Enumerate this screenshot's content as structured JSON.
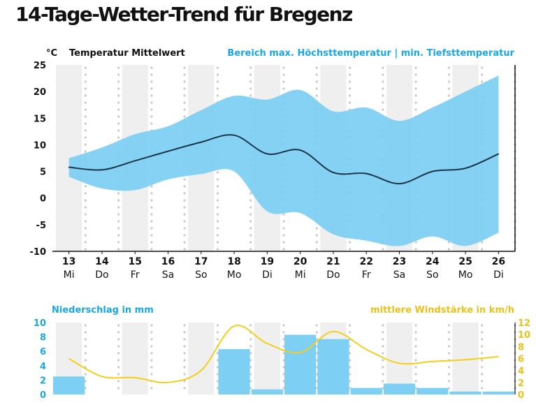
{
  "title": "14-Tage-Wetter-Trend für Bregenz",
  "colors": {
    "band": "#7dcff4",
    "mean_line": "#1b3446",
    "precip": "#7dcff4",
    "wind": "#f3cf1a",
    "wind_axis": "#e9c21a",
    "precip_axis": "#1aa7e2",
    "stripe": "#efefef",
    "dot": "#c9c9c9"
  },
  "chart_data": [
    {
      "type": "area",
      "title": "Temperatur Mittelwert",
      "unit_label": "°C",
      "legend_range": "Bereich max. Höchsttemperatur | min. Tiefsttemperatur",
      "ylim": [
        -10,
        25
      ],
      "yticks": [
        25,
        20,
        15,
        10,
        5,
        0,
        -5,
        -10
      ],
      "categories": [
        "13",
        "14",
        "15",
        "16",
        "17",
        "18",
        "19",
        "20",
        "21",
        "22",
        "23",
        "24",
        "25",
        "26"
      ],
      "weekdays": [
        "Mi",
        "Do",
        "Fr",
        "Sa",
        "So",
        "Mo",
        "Di",
        "Mi",
        "Do",
        "Fr",
        "Sa",
        "So",
        "Mo",
        "Di"
      ],
      "series": [
        {
          "name": "Temperatur Mittelwert",
          "values": [
            5.8,
            5.3,
            7.0,
            8.8,
            10.5,
            11.8,
            8.3,
            9.0,
            4.8,
            4.6,
            2.7,
            5.0,
            5.6,
            8.3
          ]
        },
        {
          "name": "max. Höchsttemperatur",
          "values": [
            7.5,
            9.5,
            12.0,
            13.5,
            16.5,
            19.2,
            18.5,
            20.3,
            16.3,
            17.0,
            14.5,
            17.0,
            20.0,
            23.0
          ]
        },
        {
          "name": "min. Tiefsttemperatur",
          "values": [
            4.0,
            1.8,
            1.5,
            3.5,
            4.5,
            5.0,
            -2.5,
            -2.8,
            -6.8,
            -8.0,
            -9.0,
            -7.2,
            -9.0,
            -6.5
          ]
        }
      ]
    },
    {
      "type": "bar",
      "precip_label": "Niederschlag in mm",
      "wind_label": "mittlere Windstärke in km/h",
      "ylim": [
        0,
        10
      ],
      "yticks": [
        10,
        8,
        6,
        4,
        2,
        0
      ],
      "y2lim": [
        0,
        12
      ],
      "y2ticks": [
        12,
        10,
        8,
        6,
        4,
        2,
        0
      ],
      "series": [
        {
          "name": "Niederschlag in mm",
          "values": [
            2.5,
            0,
            0,
            0,
            0,
            6.3,
            0.7,
            8.3,
            7.7,
            0.9,
            1.5,
            0.9,
            0.4,
            0.4
          ]
        },
        {
          "name": "mittlere Windstärke in km/h",
          "values": [
            6.0,
            3.0,
            2.8,
            2.0,
            4.0,
            11.4,
            8.5,
            7.0,
            10.5,
            7.5,
            5.2,
            5.5,
            5.8,
            6.3
          ]
        }
      ]
    }
  ]
}
